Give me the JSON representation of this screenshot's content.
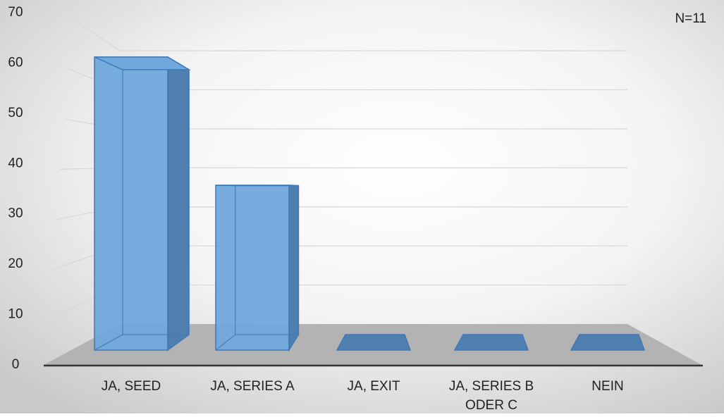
{
  "chart_data": {
    "type": "bar3d",
    "annotation": "N=11",
    "categories": [
      "JA, SEED",
      "JA, SERIES A",
      "JA, EXIT",
      "JA, SERIES B\nODER C",
      "NEIN"
    ],
    "values": [
      64,
      36,
      0,
      0,
      0
    ],
    "color": "#6fa8dc",
    "ylim": [
      0,
      70
    ],
    "yticks": [
      0,
      10,
      20,
      30,
      40,
      50,
      60,
      70
    ],
    "grid": true
  }
}
